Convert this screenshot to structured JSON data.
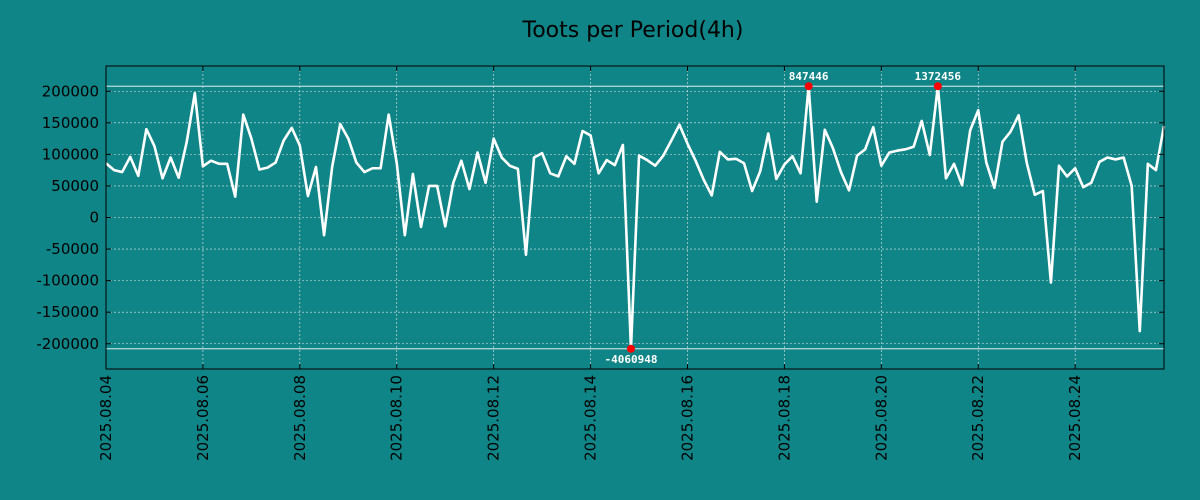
{
  "chart_data": {
    "type": "line",
    "title": "Toots per Period(4h)",
    "xlabel": "",
    "ylabel": "",
    "x_range": [
      "2025-08-04",
      "2025-08-25T20:00"
    ],
    "ylim": [
      -240000,
      240000
    ],
    "grid": true,
    "yticks": [
      200000,
      150000,
      100000,
      50000,
      0,
      -50000,
      -100000,
      -150000,
      -200000
    ],
    "ytick_labels": [
      "200000",
      "150000",
      "100000",
      "50000",
      "0",
      "-50000",
      "-100000",
      "-150000",
      "-200000"
    ],
    "xticks": [
      "2025-08-04",
      "2025-08-06",
      "2025-08-08",
      "2025-08-10",
      "2025-08-12",
      "2025-08-14",
      "2025-08-16",
      "2025-08-18",
      "2025-08-20",
      "2025-08-22",
      "2025-08-24"
    ],
    "xtick_labels": [
      "2025.08.04",
      "2025.08.06",
      "2025.08.08",
      "2025.08.10",
      "2025.08.12",
      "2025.08.14",
      "2025.08.16",
      "2025.08.18",
      "2025.08.20",
      "2025.08.22",
      "2025.08.24"
    ],
    "clip_lines": [
      208000,
      -208000
    ],
    "series": [
      {
        "values": [
          86000,
          75000,
          72000,
          96000,
          66000,
          140000,
          113000,
          62000,
          95000,
          63000,
          120000,
          197000,
          81000,
          90000,
          85000,
          85000,
          33000,
          163000,
          125000,
          76000,
          79000,
          87000,
          122000,
          142000,
          114000,
          34000,
          80000,
          -28000,
          80000,
          148000,
          125000,
          87000,
          72000,
          78000,
          78000,
          163000,
          86000,
          -28000,
          69000,
          -15000,
          50000,
          50000,
          -14000,
          55000,
          90000,
          45000,
          103000,
          55000,
          125000,
          95000,
          82000,
          77000,
          -59000,
          95000,
          102000,
          70000,
          65000,
          97000,
          85000,
          137000,
          130000,
          70000,
          91000,
          83000,
          115000,
          -208000,
          98000,
          91000,
          82000,
          98000,
          122000,
          147000,
          117000,
          90000,
          60000,
          35000,
          104000,
          92000,
          93000,
          86000,
          42000,
          73000,
          133000,
          61000,
          84000,
          97000,
          70000,
          208000,
          25000,
          139000,
          110000,
          72000,
          43000,
          98000,
          108000,
          143000,
          82000,
          103000,
          106000,
          108000,
          112000,
          153000,
          99000,
          208000,
          62000,
          85000,
          51000,
          138000,
          170000,
          87000,
          47000,
          120000,
          136000,
          162000,
          87000,
          36000,
          42000,
          -103000,
          82000,
          65000,
          78000,
          48000,
          55000,
          88000,
          95000,
          92000,
          95000,
          50000,
          -180000,
          85000,
          75000,
          145000
        ]
      }
    ],
    "annotations": [
      {
        "label": "847446",
        "x": "2025-08-18T12:00",
        "y": 208000,
        "position": "above"
      },
      {
        "label": "1372456",
        "x": "2025-08-21T04:00",
        "y": 208000,
        "position": "above"
      },
      {
        "label": "-4060948",
        "x": "2025-08-14T20:00",
        "y": -208000,
        "position": "below"
      }
    ],
    "colors": {
      "background": "#108587",
      "line": "#ffffff",
      "marker": "#ff0000",
      "grid": "#e8e8e8",
      "axes": "#000000"
    }
  }
}
